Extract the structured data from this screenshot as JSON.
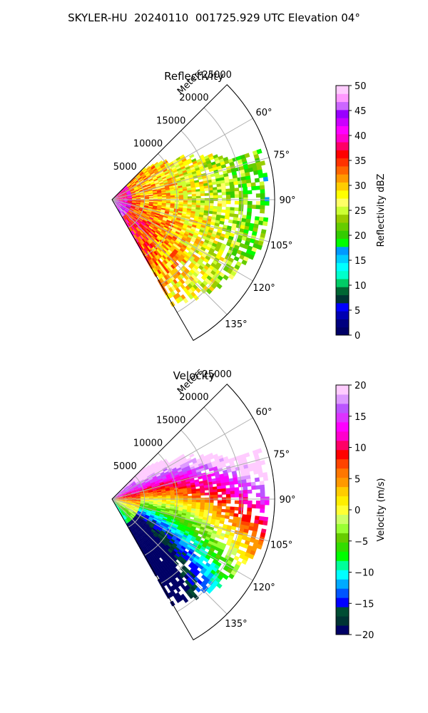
{
  "figure": {
    "suptitle": "SKYLER-HU  20240110  001725.929 UTC Elevation 04°"
  },
  "colors": {
    "grid": "#b0b0b0",
    "reflectivity_scale": [
      "#000066",
      "#00007f",
      "#0000b2",
      "#0000ff",
      "#003333",
      "#006633",
      "#00cc66",
      "#00ffcc",
      "#00ffff",
      "#00ccff",
      "#0099ff",
      "#00ff00",
      "#33cc00",
      "#66cc00",
      "#99cc00",
      "#ccff33",
      "#ffff66",
      "#ffff00",
      "#ffcc00",
      "#ff9900",
      "#ff6600",
      "#ff3300",
      "#ff0000",
      "#ff0066",
      "#ff00cc",
      "#ff00ff",
      "#cc00ff",
      "#9900ff",
      "#cc66ff",
      "#ff99ff",
      "#ffccff"
    ],
    "velocity_scale": [
      "#000066",
      "#003333",
      "#004d33",
      "#0000ff",
      "#0055ff",
      "#00aaff",
      "#00ffff",
      "#00ff99",
      "#00ff00",
      "#33dd00",
      "#66cc00",
      "#99ff33",
      "#ccff66",
      "#ffff33",
      "#ffee00",
      "#ffcc00",
      "#ff9900",
      "#ff7700",
      "#ff4400",
      "#ff0000",
      "#ff0066",
      "#ff00cc",
      "#ff00ff",
      "#dd33ff",
      "#bb55ff",
      "#dd99ff",
      "#ffccff"
    ]
  },
  "chart_data": [
    {
      "type": "heatmap",
      "projection": "polar-sector",
      "title": "Reflectivity",
      "radial_label": "Meters",
      "r_ticks": [
        5000,
        10000,
        15000,
        20000,
        25000
      ],
      "r_tick_labels": [
        "5000",
        "10000",
        "15000",
        "20000",
        "25000"
      ],
      "rlim": [
        0,
        25000
      ],
      "theta_ticks": [
        60,
        75,
        90,
        105,
        120,
        135
      ],
      "theta_tick_labels": [
        "60°",
        "75°",
        "90°",
        "105°",
        "120°",
        "135°"
      ],
      "theta_range": [
        45,
        150
      ],
      "grid": true,
      "colorbar": {
        "label": "Reflectivity dBZ",
        "min": 0,
        "max": 50,
        "ticks": [
          0,
          5,
          10,
          15,
          20,
          25,
          30,
          35,
          40,
          45,
          50
        ],
        "tick_labels": [
          "0",
          "5",
          "10",
          "15",
          "20",
          "25",
          "30",
          "35",
          "40",
          "45",
          "50"
        ]
      }
    },
    {
      "type": "heatmap",
      "projection": "polar-sector",
      "title": "Velocity",
      "radial_label": "Meters",
      "r_ticks": [
        5000,
        10000,
        15000,
        20000,
        25000
      ],
      "r_tick_labels": [
        "5000",
        "10000",
        "15000",
        "20000",
        "25000"
      ],
      "rlim": [
        0,
        25000
      ],
      "theta_ticks": [
        60,
        75,
        90,
        105,
        120,
        135
      ],
      "theta_tick_labels": [
        "60°",
        "75°",
        "90°",
        "105°",
        "120°",
        "135°"
      ],
      "theta_range": [
        45,
        150
      ],
      "grid": true,
      "colorbar": {
        "label": "Velocity (m/s)",
        "min": -20,
        "max": 20,
        "ticks": [
          -20,
          -15,
          -10,
          -5,
          0,
          5,
          10,
          15,
          20
        ],
        "tick_labels": [
          "−20",
          "−15",
          "−10",
          "−5",
          "0",
          "5",
          "10",
          "15",
          "20"
        ]
      }
    }
  ]
}
